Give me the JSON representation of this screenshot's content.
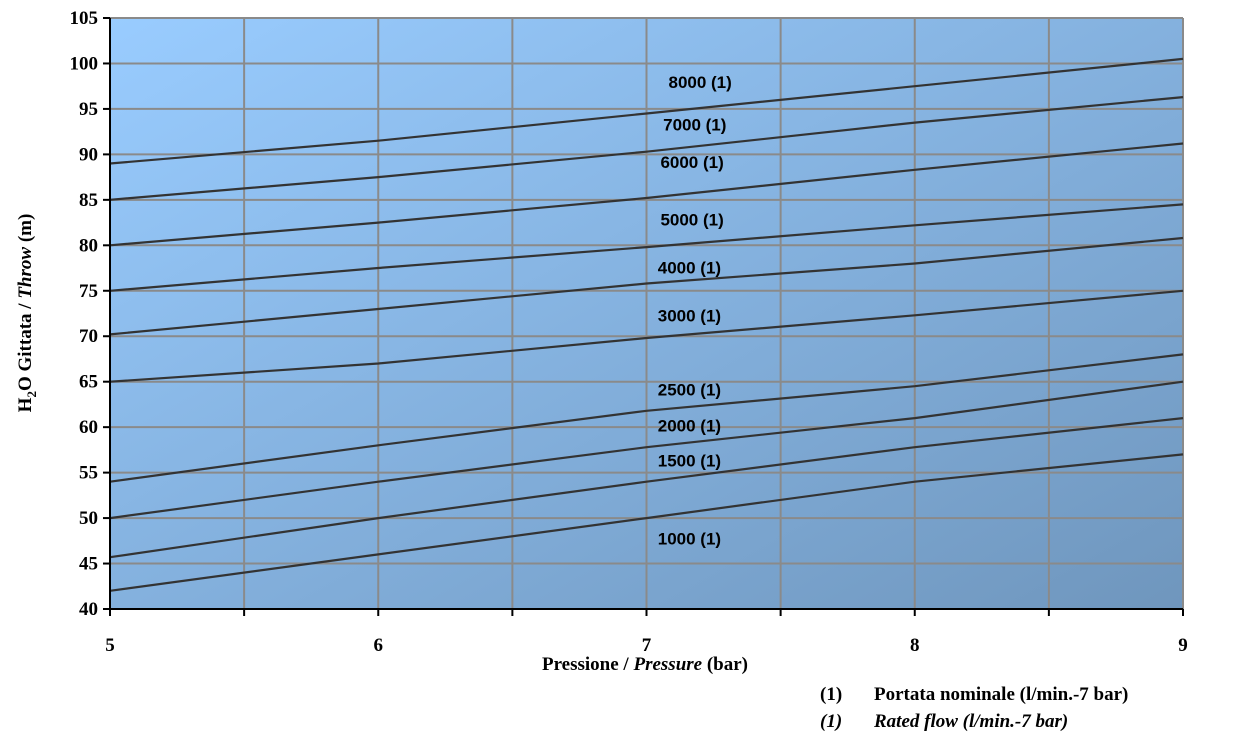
{
  "chart_data": {
    "type": "line",
    "xlabel_main": "Pressione / ",
    "xlabel_italic": "Pressure",
    "xlabel_unit": " (bar)",
    "ylabel_main": "H",
    "ylabel_sub": "2",
    "ylabel_rest": "O Gittata / ",
    "ylabel_italic": "Throw",
    "ylabel_unit": " (m)",
    "xlim": [
      5,
      9
    ],
    "ylim": [
      40,
      105
    ],
    "x_ticks": [
      5,
      6,
      7,
      8,
      9
    ],
    "y_ticks": [
      40,
      45,
      50,
      55,
      60,
      65,
      70,
      75,
      80,
      85,
      90,
      95,
      100,
      105
    ],
    "x_grid": [
      5,
      5.5,
      6,
      6.5,
      7,
      7.5,
      8,
      8.5,
      9
    ],
    "grid": true,
    "background_gradient": [
      "#99ccff",
      "#6f96bd"
    ],
    "line_color": "#333333",
    "x": [
      5,
      6,
      7,
      8,
      9
    ],
    "series": [
      {
        "name": "8000 (1)",
        "values": [
          89,
          91.5,
          94.5,
          97.5,
          100.5
        ],
        "label_at": [
          7.2,
          97.3
        ]
      },
      {
        "name": "7000 (1)",
        "values": [
          85,
          87.5,
          90.3,
          93.5,
          96.3
        ],
        "label_at": [
          7.18,
          92.6
        ]
      },
      {
        "name": "6000 (1)",
        "values": [
          80,
          82.5,
          85.2,
          88.3,
          91.2
        ],
        "label_at": [
          7.17,
          88.5
        ]
      },
      {
        "name": "5000 (1)",
        "values": [
          75,
          77.5,
          79.8,
          82.2,
          84.5
        ],
        "label_at": [
          7.17,
          82.2
        ]
      },
      {
        "name": "4000 (1)",
        "values": [
          70.2,
          73,
          75.8,
          78,
          80.8
        ],
        "label_at": [
          7.16,
          76.9
        ]
      },
      {
        "name": "3000 (1)",
        "values": [
          65,
          67,
          69.8,
          72.3,
          75
        ],
        "label_at": [
          7.16,
          71.6
        ]
      },
      {
        "name": "2500 (1)",
        "values": [
          54,
          58,
          61.8,
          64.5,
          68
        ],
        "label_at": [
          7.16,
          63.5
        ]
      },
      {
        "name": "2000 (1)",
        "values": [
          50,
          54,
          57.8,
          61,
          65
        ],
        "label_at": [
          7.16,
          59.5
        ]
      },
      {
        "name": "1500 (1)",
        "values": [
          45.7,
          50,
          54,
          57.8,
          61
        ],
        "label_at": [
          7.16,
          55.7
        ]
      },
      {
        "name": "1000 (1)",
        "values": [
          42,
          46,
          50,
          54,
          57
        ],
        "label_at": [
          7.16,
          47.1
        ]
      }
    ],
    "footnotes": [
      {
        "mark": "(1)",
        "text": "Portata nominale (l/min.-7 bar)",
        "italic": false
      },
      {
        "mark": "(1)",
        "text": "Rated flow (l/min.-7 bar)",
        "italic": true
      }
    ]
  }
}
